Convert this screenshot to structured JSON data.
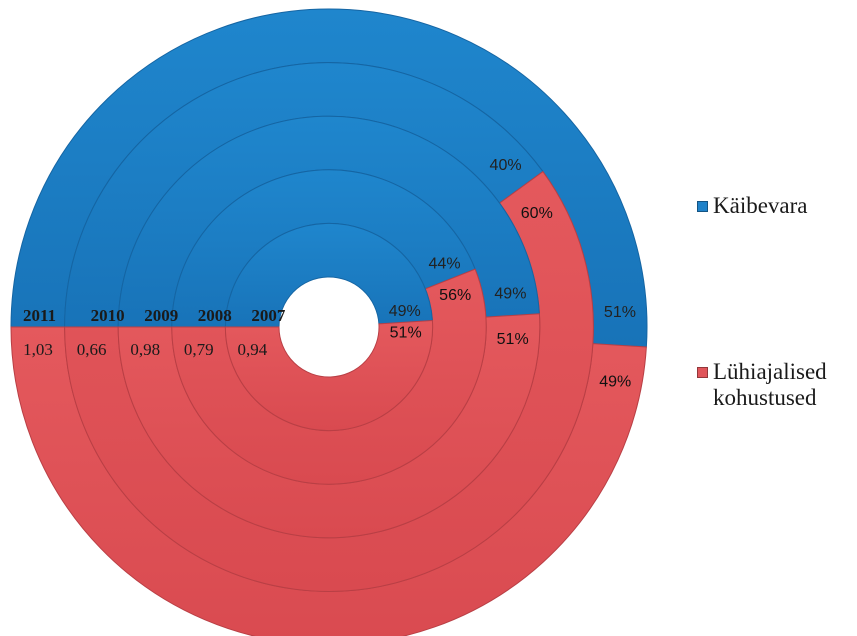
{
  "chart_data": {
    "type": "doughnut",
    "categories": [
      "Käibevara",
      "Lühiajalised kohustused"
    ],
    "rings": [
      {
        "year": "2011",
        "ratio": "1,03",
        "values": [
          51,
          49
        ]
      },
      {
        "year": "2010",
        "ratio": "0,66",
        "values": [
          40,
          60
        ]
      },
      {
        "year": "2009",
        "ratio": "0,98",
        "values": [
          49,
          51
        ]
      },
      {
        "year": "2008",
        "ratio": "0,79",
        "values": [
          44,
          56
        ]
      },
      {
        "year": "2007",
        "ratio": "0,94",
        "values": [
          49,
          51
        ]
      }
    ],
    "series_colors": [
      "#1f82c9",
      "#e0555a"
    ],
    "legend_position": "right"
  },
  "legend": {
    "items": [
      {
        "label": "Käibevara",
        "color": "#1f82c9"
      },
      {
        "label": "Lühiajalised\nkohustused",
        "color": "#e0555a"
      }
    ]
  }
}
